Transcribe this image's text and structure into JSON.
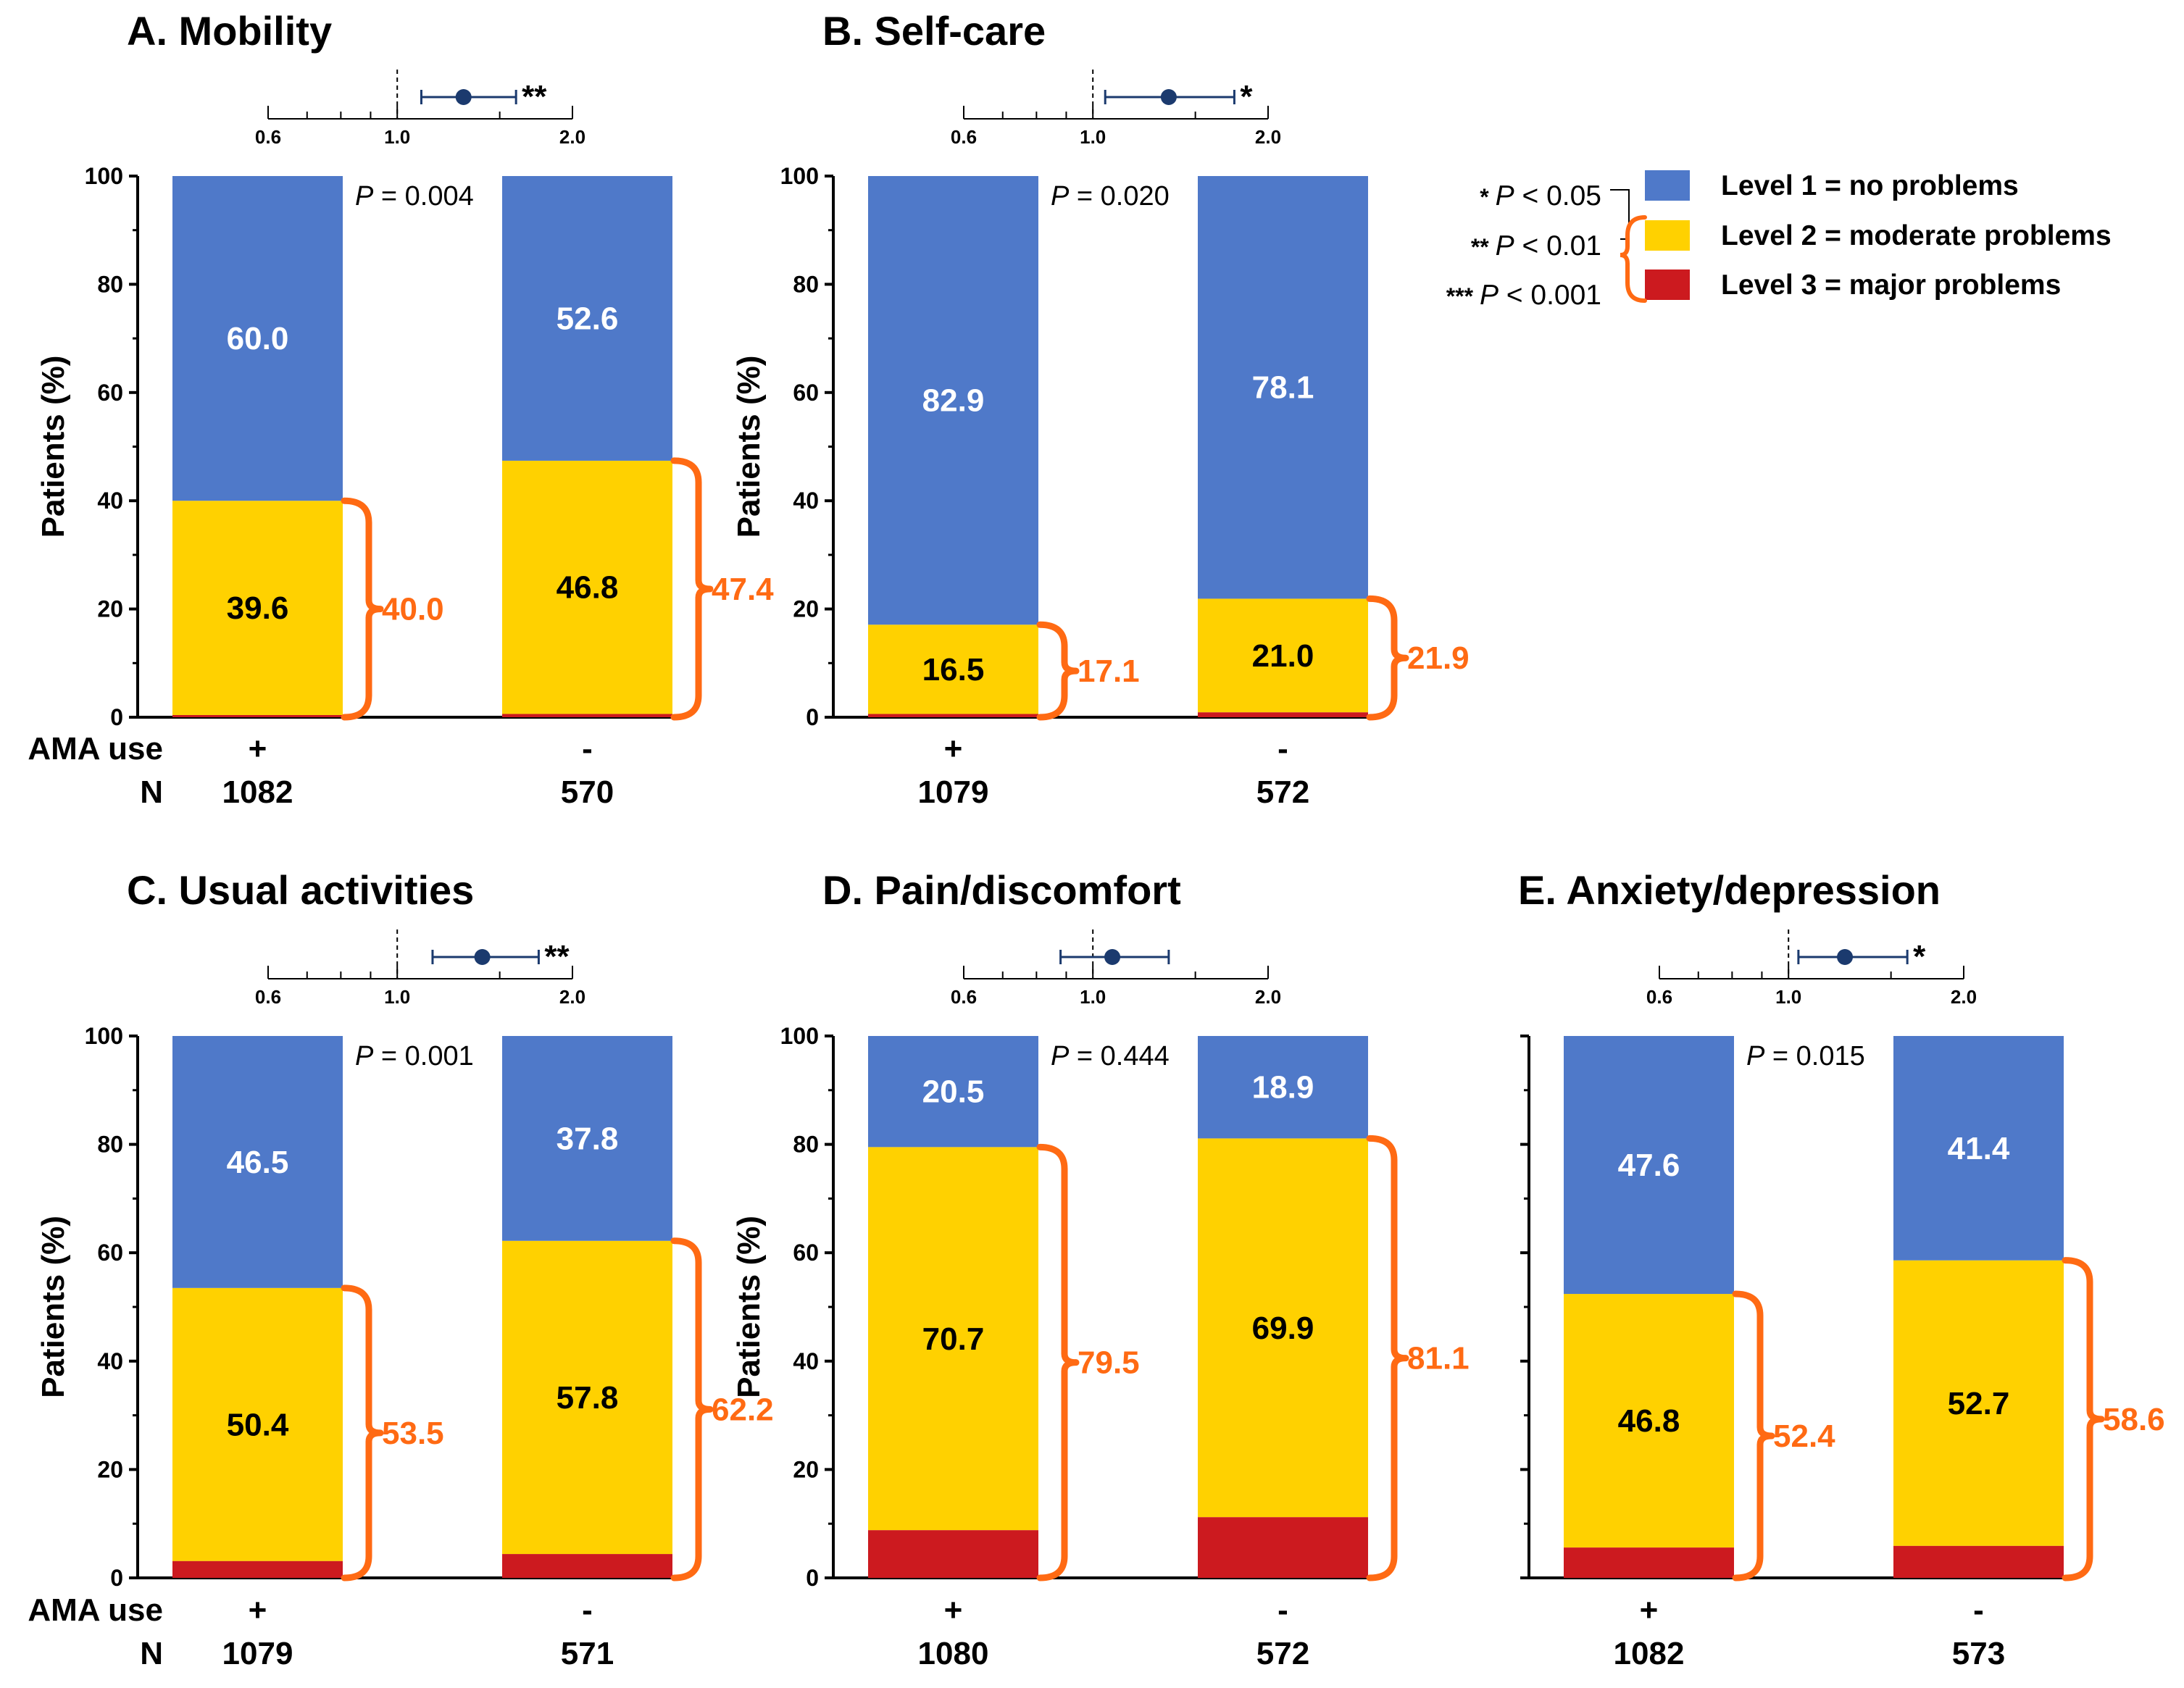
{
  "colors": {
    "level1": "#4f79c9",
    "level2": "#ffd100",
    "level3": "#cc1a1f",
    "brace": "#ff6a13",
    "forest": "#1b3a6e",
    "axis": "#000000"
  },
  "legend": {
    "items": [
      {
        "label": "Level 1 = no problems",
        "color": "#4f79c9"
      },
      {
        "label": "Level 2 = moderate problems",
        "color": "#ffd100"
      },
      {
        "label": "Level 3 = major problems",
        "color": "#cc1a1f"
      }
    ],
    "significance": [
      {
        "stars": "*",
        "p": "P",
        "rest": " < 0.05"
      },
      {
        "stars": "**",
        "p": "P",
        "rest": " < 0.01"
      },
      {
        "stars": "***",
        "p": "P",
        "rest": " < 0.001"
      }
    ]
  },
  "row_labels": {
    "ama_use": "AMA use",
    "n": "N"
  },
  "chart_data": [
    {
      "type": "bar",
      "title": "A. Mobility",
      "ylabel": "Patients (%)",
      "ylim": [
        0,
        100
      ],
      "yticks": [
        "0",
        "20",
        "40",
        "60",
        "80",
        "100"
      ],
      "categories": [
        "+",
        "-"
      ],
      "n": [
        "1082",
        "570"
      ],
      "p_label": "P",
      "p_value": " = 0.004",
      "series": [
        {
          "name": "Level 1 = no problems",
          "values": [
            60.0,
            52.6
          ]
        },
        {
          "name": "Level 2 = moderate problems",
          "values": [
            39.6,
            46.8
          ]
        },
        {
          "name": "Level 3 = major problems",
          "values": [
            0.4,
            0.6
          ]
        }
      ],
      "labels": {
        "level1": [
          "60.0",
          "52.6"
        ],
        "level2": [
          "39.6",
          "46.8"
        ],
        "any_problem": [
          "40.0",
          "47.4"
        ]
      },
      "forest": {
        "xticks": [
          "0.6",
          "1.0",
          "2.0"
        ],
        "estimate": 1.3,
        "ci": [
          1.1,
          1.6
        ],
        "stars": "**"
      }
    },
    {
      "type": "bar",
      "title": "B. Self-care",
      "ylabel": "Patients (%)",
      "ylim": [
        0,
        100
      ],
      "yticks": [
        "0",
        "20",
        "40",
        "60",
        "80",
        "100"
      ],
      "categories": [
        "+",
        "-"
      ],
      "n": [
        "1079",
        "572"
      ],
      "p_label": "P",
      "p_value": " = 0.020",
      "series": [
        {
          "name": "Level 1 = no problems",
          "values": [
            82.9,
            78.1
          ]
        },
        {
          "name": "Level 2 = moderate problems",
          "values": [
            16.5,
            21.0
          ]
        },
        {
          "name": "Level 3 = major problems",
          "values": [
            0.6,
            0.9
          ]
        }
      ],
      "labels": {
        "level1": [
          "82.9",
          "78.1"
        ],
        "level2": [
          "16.5",
          "21.0"
        ],
        "any_problem": [
          "17.1",
          "21.9"
        ]
      },
      "forest": {
        "xticks": [
          "0.6",
          "1.0",
          "2.0"
        ],
        "estimate": 1.35,
        "ci": [
          1.05,
          1.75
        ],
        "stars": "*"
      }
    },
    {
      "type": "bar",
      "title": "C. Usual activities",
      "ylabel": "Patients (%)",
      "ylim": [
        0,
        100
      ],
      "yticks": [
        "0",
        "20",
        "40",
        "60",
        "80",
        "100"
      ],
      "categories": [
        "+",
        "-"
      ],
      "n": [
        "1079",
        "571"
      ],
      "p_label": "P",
      "p_value": " = 0.001",
      "series": [
        {
          "name": "Level 1 = no problems",
          "values": [
            46.5,
            37.8
          ]
        },
        {
          "name": "Level 2 = moderate problems",
          "values": [
            50.4,
            57.8
          ]
        },
        {
          "name": "Level 3 = major problems",
          "values": [
            3.1,
            4.4
          ]
        }
      ],
      "labels": {
        "level1": [
          "46.5",
          "37.8"
        ],
        "level2": [
          "50.4",
          "57.8"
        ],
        "any_problem": [
          "53.5",
          "62.2"
        ]
      },
      "forest": {
        "xticks": [
          "0.6",
          "1.0",
          "2.0"
        ],
        "estimate": 1.4,
        "ci": [
          1.15,
          1.75
        ],
        "stars": "**"
      }
    },
    {
      "type": "bar",
      "title": "D. Pain/discomfort",
      "ylabel": "Patients (%)",
      "ylim": [
        0,
        100
      ],
      "yticks": [
        "0",
        "20",
        "40",
        "60",
        "80",
        "100"
      ],
      "categories": [
        "+",
        "-"
      ],
      "n": [
        "1080",
        "572"
      ],
      "p_label": "P",
      "p_value": " = 0.444",
      "series": [
        {
          "name": "Level 1 = no problems",
          "values": [
            20.5,
            18.9
          ]
        },
        {
          "name": "Level 2 = moderate problems",
          "values": [
            70.7,
            69.9
          ]
        },
        {
          "name": "Level 3 = major problems",
          "values": [
            8.8,
            11.2
          ]
        }
      ],
      "labels": {
        "level1": [
          "20.5",
          "18.9"
        ],
        "level2": [
          "70.7",
          "69.9"
        ],
        "any_problem": [
          "79.5",
          "81.1"
        ]
      },
      "forest": {
        "xticks": [
          "0.6",
          "1.0",
          "2.0"
        ],
        "estimate": 1.08,
        "ci": [
          0.88,
          1.35
        ],
        "stars": ""
      }
    },
    {
      "type": "bar",
      "title": "E. Anxiety/depression",
      "ylabel": "",
      "ylim": [
        0,
        100
      ],
      "yticks": [],
      "categories": [
        "+",
        "-"
      ],
      "n": [
        "1082",
        "573"
      ],
      "p_label": "P",
      "p_value": " = 0.015",
      "series": [
        {
          "name": "Level 1 = no problems",
          "values": [
            47.6,
            41.4
          ]
        },
        {
          "name": "Level 2 = moderate problems",
          "values": [
            46.8,
            52.7
          ]
        },
        {
          "name": "Level 3 = major problems",
          "values": [
            5.6,
            5.9
          ]
        }
      ],
      "labels": {
        "level1": [
          "47.6",
          "41.4"
        ],
        "level2": [
          "46.8",
          "52.7"
        ],
        "any_problem": [
          "52.4",
          "58.6"
        ]
      },
      "forest": {
        "xticks": [
          "0.6",
          "1.0",
          "2.0"
        ],
        "estimate": 1.25,
        "ci": [
          1.04,
          1.6
        ],
        "stars": "*"
      }
    }
  ]
}
